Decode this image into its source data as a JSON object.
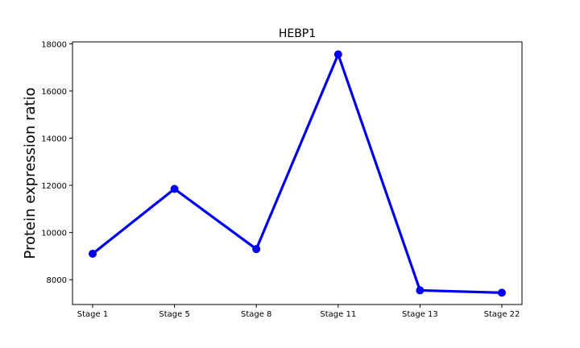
{
  "chart_data": {
    "type": "line",
    "title": "HEBP1",
    "xlabel": "",
    "ylabel": "Protein expression ratio",
    "categories": [
      "Stage 1",
      "Stage 5",
      "Stage 8",
      "Stage 11",
      "Stage 13",
      "Stage 22"
    ],
    "series": [
      {
        "name": "HEBP1",
        "values": [
          9100,
          11850,
          9300,
          17550,
          7550,
          7450
        ],
        "color": "#0000ee"
      }
    ],
    "ylim": [
      6950,
      18080
    ],
    "yticks": [
      8000,
      10000,
      12000,
      14000,
      16000,
      18000
    ],
    "grid": false,
    "legend": false
  }
}
